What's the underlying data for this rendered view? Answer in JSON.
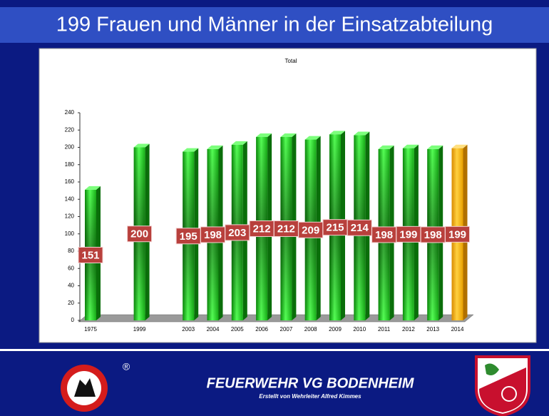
{
  "header": {
    "title": "199 Frauen und Männer in der Einsatzabteilung"
  },
  "chart_data": {
    "type": "bar3d",
    "title": "Total",
    "categories": [
      "1975",
      null,
      "1999",
      null,
      "2003",
      "2004",
      "2005",
      "2006",
      "2007",
      "2008",
      "2009",
      "2010",
      "2011",
      "2012",
      "2013",
      "2014"
    ],
    "values": [
      151,
      null,
      200,
      null,
      195,
      198,
      203,
      212,
      212,
      209,
      215,
      214,
      198,
      199,
      198,
      199
    ],
    "colors": [
      "green",
      null,
      "green",
      null,
      "green",
      "green",
      "green",
      "green",
      "green",
      "green",
      "green",
      "green",
      "green",
      "green",
      "green",
      "orange"
    ],
    "ylim": [
      0,
      240
    ],
    "yticks": [
      0,
      20,
      40,
      60,
      80,
      100,
      120,
      140,
      160,
      180,
      200,
      220,
      240
    ],
    "grid": false
  },
  "footer": {
    "trademark": "®",
    "title": "FEUERWEHR VG BODENHEIM",
    "subtitle": "Erstellt von Wehrleiter Alfred Kimmes"
  }
}
